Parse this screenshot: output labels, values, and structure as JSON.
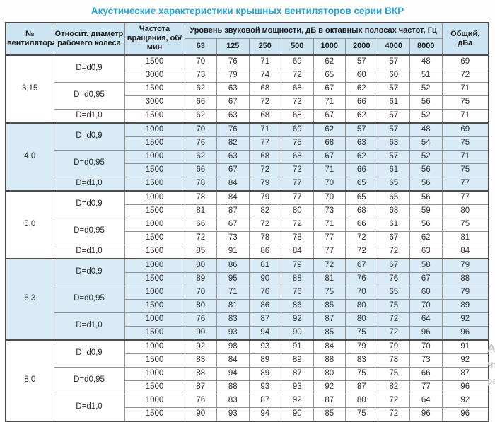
{
  "title": "Акустические характеристики крышных вентиляторов серии ВКР",
  "colors": {
    "title_accent": "#2aa5d8",
    "header_bg": "#cde4f2",
    "shaded_row_bg": "#d8ebf7",
    "outer_border": "#4c4c4c",
    "inner_border": "#8f8f8f",
    "body_text": "#2e2e2e"
  },
  "watermark": {
    "line1": "Ак",
    "line2": "Чта",
    "line3": "ра"
  },
  "table": {
    "headers": {
      "fan": "№ вентилятора",
      "diameter": "Относит. диаметр рабочего колеса",
      "rpm": "Частота вращения, об/мин",
      "levels_group": "Уровень звуковой мощности, дБ в октавных полосах частот, Гц",
      "frequencies": [
        "63",
        "125",
        "250",
        "500",
        "1000",
        "2000",
        "4000",
        "8000"
      ],
      "total": "Общий,\nдБа"
    },
    "groups": [
      {
        "fan": "3,15",
        "shaded": false,
        "diameters": [
          {
            "label": "D=d0,9",
            "rows": [
              {
                "rpm": "1500",
                "levels": [
                  70,
                  76,
                  71,
                  69,
                  62,
                  57,
                  57,
                  48
                ],
                "total": 69
              },
              {
                "rpm": "3000",
                "levels": [
                  73,
                  79,
                  74,
                  72,
                  65,
                  60,
                  60,
                  51
                ],
                "total": 72
              }
            ]
          },
          {
            "label": "D=d0,95",
            "rows": [
              {
                "rpm": "1500",
                "levels": [
                  62,
                  63,
                  68,
                  68,
                  67,
                  62,
                  57,
                  52
                ],
                "total": 71
              },
              {
                "rpm": "3000",
                "levels": [
                  66,
                  67,
                  72,
                  72,
                  71,
                  66,
                  61,
                  56
                ],
                "total": 75
              }
            ]
          },
          {
            "label": "D=d1,0",
            "rows": [
              {
                "rpm": "1500",
                "levels": [
                  62,
                  63,
                  68,
                  68,
                  67,
                  62,
                  57,
                  52
                ],
                "total": 71
              }
            ]
          }
        ]
      },
      {
        "fan": "4,0",
        "shaded": true,
        "diameters": [
          {
            "label": "D=d0,9",
            "rows": [
              {
                "rpm": "1000",
                "levels": [
                  70,
                  76,
                  71,
                  69,
                  62,
                  57,
                  57,
                  48
                ],
                "total": 69
              },
              {
                "rpm": "1500",
                "levels": [
                  76,
                  82,
                  77,
                  75,
                  68,
                  63,
                  63,
                  54
                ],
                "total": 75
              }
            ]
          },
          {
            "label": "D=d0,95",
            "rows": [
              {
                "rpm": "1000",
                "levels": [
                  62,
                  63,
                  68,
                  68,
                  67,
                  62,
                  57,
                  52
                ],
                "total": 71
              },
              {
                "rpm": "1500",
                "levels": [
                  66,
                  67,
                  72,
                  72,
                  71,
                  66,
                  61,
                  56
                ],
                "total": 75
              }
            ]
          },
          {
            "label": "D=d1,0",
            "rows": [
              {
                "rpm": "1500",
                "levels": [
                  78,
                  84,
                  79,
                  77,
                  70,
                  65,
                  65,
                  56
                ],
                "total": 77
              }
            ]
          }
        ]
      },
      {
        "fan": "5,0",
        "shaded": false,
        "diameters": [
          {
            "label": "D=d0,9",
            "rows": [
              {
                "rpm": "1000",
                "levels": [
                  78,
                  84,
                  79,
                  77,
                  70,
                  65,
                  65,
                  56
                ],
                "total": 77
              },
              {
                "rpm": "1500",
                "levels": [
                  81,
                  87,
                  82,
                  80,
                  73,
                  68,
                  68,
                  59
                ],
                "total": 80
              }
            ]
          },
          {
            "label": "D=d0,95",
            "rows": [
              {
                "rpm": "1000",
                "levels": [
                  66,
                  67,
                  72,
                  72,
                  71,
                  66,
                  61,
                  56
                ],
                "total": 75
              },
              {
                "rpm": "1500",
                "levels": [
                  72,
                  73,
                  78,
                  78,
                  77,
                  72,
                  67,
                  62
                ],
                "total": 81
              }
            ]
          },
          {
            "label": "D=d1,0",
            "rows": [
              {
                "rpm": "1500",
                "levels": [
                  85,
                  91,
                  86,
                  84,
                  77,
                  72,
                  72,
                  63
                ],
                "total": 84
              }
            ]
          }
        ]
      },
      {
        "fan": "6,3",
        "shaded": true,
        "diameters": [
          {
            "label": "D=d0,9",
            "rows": [
              {
                "rpm": "1000",
                "levels": [
                  80,
                  86,
                  81,
                  79,
                  72,
                  67,
                  67,
                  58
                ],
                "total": 79
              },
              {
                "rpm": "1500",
                "levels": [
                  89,
                  95,
                  90,
                  88,
                  81,
                  76,
                  76,
                  67
                ],
                "total": 88
              }
            ]
          },
          {
            "label": "D=d0,95",
            "rows": [
              {
                "rpm": "1000",
                "levels": [
                  70,
                  71,
                  76,
                  76,
                  75,
                  70,
                  65,
                  60
                ],
                "total": 79
              },
              {
                "rpm": "1500",
                "levels": [
                  80,
                  81,
                  86,
                  86,
                  85,
                  80,
                  75,
                  70
                ],
                "total": 89
              }
            ]
          },
          {
            "label": "D=d1,0",
            "rows": [
              {
                "rpm": "1000",
                "levels": [
                  76,
                  83,
                  87,
                  92,
                  87,
                  80,
                  72,
                  64
                ],
                "total": 92
              },
              {
                "rpm": "1500",
                "levels": [
                  90,
                  93,
                  94,
                  90,
                  85,
                  75,
                  72,
                  96
                ],
                "total": 96
              }
            ]
          }
        ]
      },
      {
        "fan": "8,0",
        "shaded": false,
        "diameters": [
          {
            "label": "D=d0,9",
            "rows": [
              {
                "rpm": "1000",
                "levels": [
                  92,
                  98,
                  93,
                  91,
                  84,
                  79,
                  79,
                  70
                ],
                "total": 91
              },
              {
                "rpm": "1500",
                "levels": [
                  83,
                  84,
                  89,
                  89,
                  88,
                  83,
                  78,
                  73
                ],
                "total": 92
              }
            ]
          },
          {
            "label": "D=d0,95",
            "rows": [
              {
                "rpm": "1000",
                "levels": [
                  88,
                  94,
                  89,
                  87,
                  80,
                  75,
                  75,
                  66
                ],
                "total": 87
              },
              {
                "rpm": "1500",
                "levels": [
                  87,
                  88,
                  93,
                  93,
                  92,
                  87,
                  82,
                  77
                ],
                "total": 96
              }
            ]
          },
          {
            "label": "D=d1,0",
            "rows": [
              {
                "rpm": "1000",
                "levels": [
                  76,
                  83,
                  87,
                  92,
                  87,
                  80,
                  72,
                  64
                ],
                "total": 92
              },
              {
                "rpm": "1500",
                "levels": [
                  90,
                  93,
                  94,
                  90,
                  85,
                  75,
                  72,
                  96
                ],
                "total": 96
              }
            ]
          }
        ]
      }
    ]
  },
  "chart_data": {
    "type": "table",
    "title": "Акустические характеристики крышных вентиляторов серии ВКР",
    "columns": [
      "№ вентилятора",
      "Относит. диаметр рабочего колеса",
      "Частота вращения, об/мин",
      "63",
      "125",
      "250",
      "500",
      "1000",
      "2000",
      "4000",
      "8000",
      "Общий, дБа"
    ],
    "column_group_label": "Уровень звуковой мощности, дБ в октавных полосах частот, Гц",
    "rows": [
      [
        "3,15",
        "D=d0,9",
        "1500",
        70,
        76,
        71,
        69,
        62,
        57,
        57,
        48,
        69
      ],
      [
        "3,15",
        "D=d0,9",
        "3000",
        73,
        79,
        74,
        72,
        65,
        60,
        60,
        51,
        72
      ],
      [
        "3,15",
        "D=d0,95",
        "1500",
        62,
        63,
        68,
        68,
        67,
        62,
        57,
        52,
        71
      ],
      [
        "3,15",
        "D=d0,95",
        "3000",
        66,
        67,
        72,
        72,
        71,
        66,
        61,
        56,
        75
      ],
      [
        "3,15",
        "D=d1,0",
        "1500",
        62,
        63,
        68,
        68,
        67,
        62,
        57,
        52,
        71
      ],
      [
        "4,0",
        "D=d0,9",
        "1000",
        70,
        76,
        71,
        69,
        62,
        57,
        57,
        48,
        69
      ],
      [
        "4,0",
        "D=d0,9",
        "1500",
        76,
        82,
        77,
        75,
        68,
        63,
        63,
        54,
        75
      ],
      [
        "4,0",
        "D=d0,95",
        "1000",
        62,
        63,
        68,
        68,
        67,
        62,
        57,
        52,
        71
      ],
      [
        "4,0",
        "D=d0,95",
        "1500",
        66,
        67,
        72,
        72,
        71,
        66,
        61,
        56,
        75
      ],
      [
        "4,0",
        "D=d1,0",
        "1500",
        78,
        84,
        79,
        77,
        70,
        65,
        65,
        56,
        77
      ],
      [
        "5,0",
        "D=d0,9",
        "1000",
        78,
        84,
        79,
        77,
        70,
        65,
        65,
        56,
        77
      ],
      [
        "5,0",
        "D=d0,9",
        "1500",
        81,
        87,
        82,
        80,
        73,
        68,
        68,
        59,
        80
      ],
      [
        "5,0",
        "D=d0,95",
        "1000",
        66,
        67,
        72,
        72,
        71,
        66,
        61,
        56,
        75
      ],
      [
        "5,0",
        "D=d0,95",
        "1500",
        72,
        73,
        78,
        78,
        77,
        72,
        67,
        62,
        81
      ],
      [
        "5,0",
        "D=d1,0",
        "1500",
        85,
        91,
        86,
        84,
        77,
        72,
        72,
        63,
        84
      ],
      [
        "6,3",
        "D=d0,9",
        "1000",
        80,
        86,
        81,
        79,
        72,
        67,
        67,
        58,
        79
      ],
      [
        "6,3",
        "D=d0,9",
        "1500",
        89,
        95,
        90,
        88,
        81,
        76,
        76,
        67,
        88
      ],
      [
        "6,3",
        "D=d0,95",
        "1000",
        70,
        71,
        76,
        76,
        75,
        70,
        65,
        60,
        79
      ],
      [
        "6,3",
        "D=d0,95",
        "1500",
        80,
        81,
        86,
        86,
        85,
        80,
        75,
        70,
        89
      ],
      [
        "6,3",
        "D=d1,0",
        "1000",
        76,
        83,
        87,
        92,
        87,
        80,
        72,
        64,
        92
      ],
      [
        "6,3",
        "D=d1,0",
        "1500",
        90,
        93,
        94,
        90,
        85,
        75,
        72,
        96,
        96
      ],
      [
        "8,0",
        "D=d0,9",
        "1000",
        92,
        98,
        93,
        91,
        84,
        79,
        79,
        70,
        91
      ],
      [
        "8,0",
        "D=d0,9",
        "1500",
        83,
        84,
        89,
        89,
        88,
        83,
        78,
        73,
        92
      ],
      [
        "8,0",
        "D=d0,95",
        "1000",
        88,
        94,
        89,
        87,
        80,
        75,
        75,
        66,
        87
      ],
      [
        "8,0",
        "D=d0,95",
        "1500",
        87,
        88,
        93,
        93,
        92,
        87,
        82,
        77,
        96
      ],
      [
        "8,0",
        "D=d1,0",
        "1000",
        76,
        83,
        87,
        92,
        87,
        80,
        72,
        64,
        92
      ],
      [
        "8,0",
        "D=d1,0",
        "1500",
        90,
        93,
        94,
        90,
        85,
        75,
        72,
        96,
        96
      ]
    ]
  }
}
